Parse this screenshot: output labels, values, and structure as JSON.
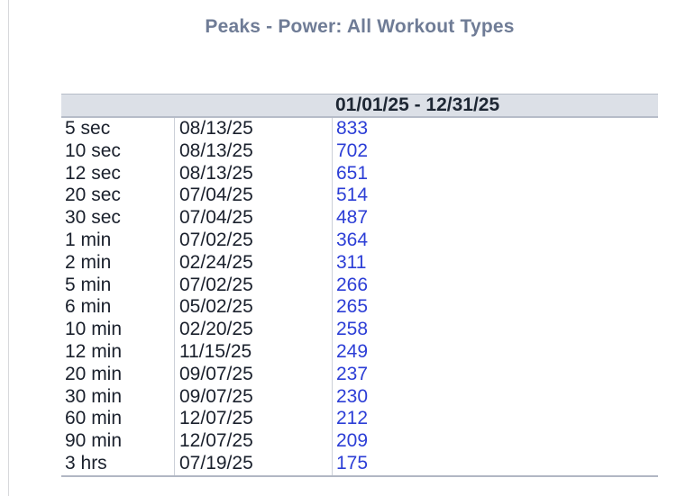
{
  "title": "Peaks - Power: All Workout Types",
  "table": {
    "date_range_header": "01/01/25 - 12/31/25",
    "columns": [
      "duration",
      "date",
      "value"
    ],
    "rows": [
      {
        "duration": "5 sec",
        "date": "08/13/25",
        "value": "833"
      },
      {
        "duration": "10 sec",
        "date": "08/13/25",
        "value": "702"
      },
      {
        "duration": "12 sec",
        "date": "08/13/25",
        "value": "651"
      },
      {
        "duration": "20 sec",
        "date": "07/04/25",
        "value": "514"
      },
      {
        "duration": "30 sec",
        "date": "07/04/25",
        "value": "487"
      },
      {
        "duration": "1 min",
        "date": "07/02/25",
        "value": "364"
      },
      {
        "duration": "2 min",
        "date": "02/24/25",
        "value": "311"
      },
      {
        "duration": "5 min",
        "date": "07/02/25",
        "value": "266"
      },
      {
        "duration": "6 min",
        "date": "05/02/25",
        "value": "265"
      },
      {
        "duration": "10 min",
        "date": "02/20/25",
        "value": "258"
      },
      {
        "duration": "12 min",
        "date": "11/15/25",
        "value": "249"
      },
      {
        "duration": "20 min",
        "date": "09/07/25",
        "value": "237"
      },
      {
        "duration": "30 min",
        "date": "09/07/25",
        "value": "230"
      },
      {
        "duration": "60 min",
        "date": "12/07/25",
        "value": "212"
      },
      {
        "duration": "90 min",
        "date": "12/07/25",
        "value": "209"
      },
      {
        "duration": "3 hrs",
        "date": "07/19/25",
        "value": "175"
      }
    ]
  },
  "colors": {
    "title": "#6f7c96",
    "header_bg": "#dce0e7",
    "header_text": "#1d2633",
    "body_text": "#1a202c",
    "value_link": "#2c3ed6",
    "table_border": "#b1b7c4",
    "column_divider": "#ccd0d8",
    "panel_rule": "#d8d9dc"
  }
}
